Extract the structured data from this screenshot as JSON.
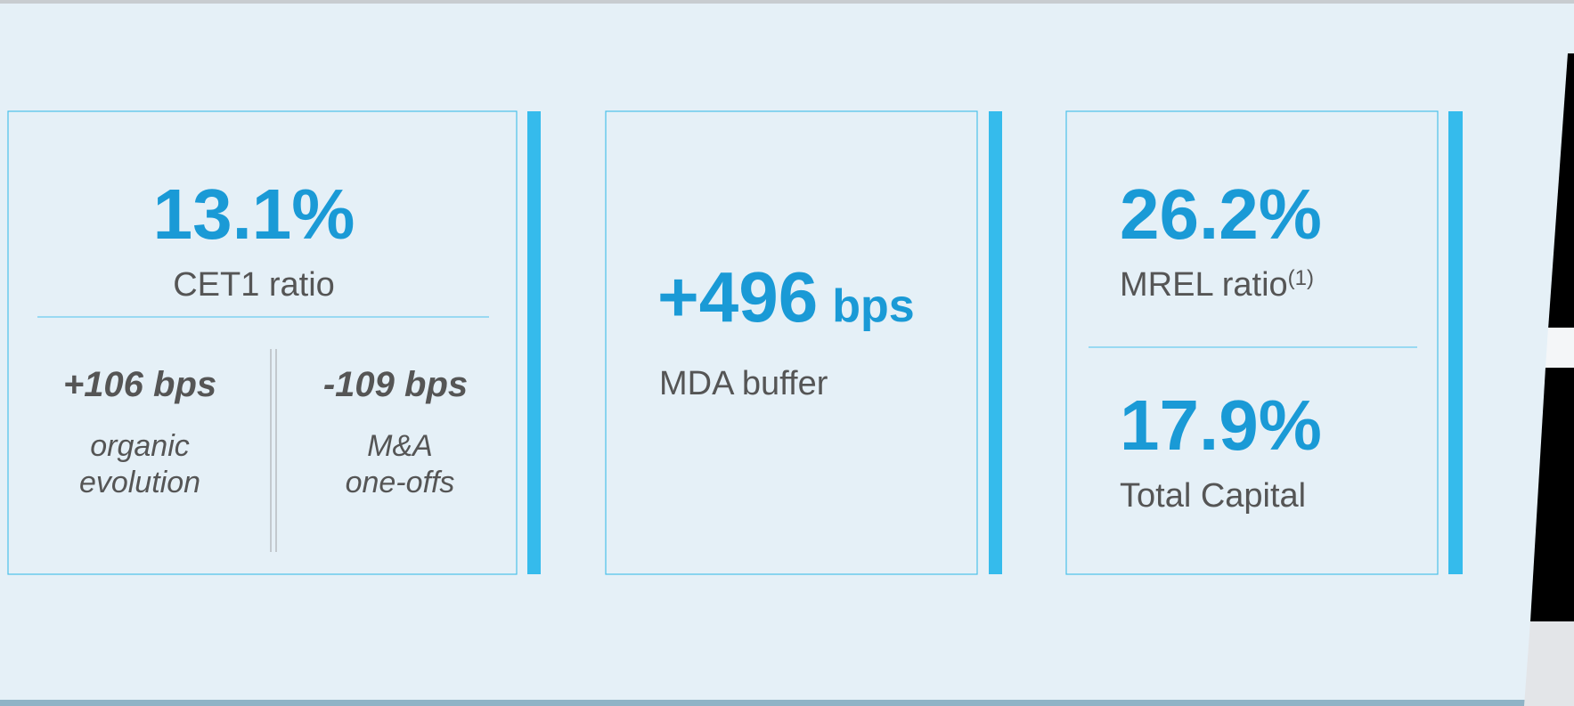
{
  "cards": [
    {
      "value": "13.1%",
      "label": "CET1 ratio",
      "details": [
        {
          "value": "+106 bps",
          "label": [
            "organic",
            "evolution"
          ]
        },
        {
          "value": "-109 bps",
          "label": [
            "M&A",
            "one-offs"
          ]
        }
      ]
    },
    {
      "value": "+496",
      "unit": "bps",
      "label": "MDA buffer"
    },
    {
      "metrics": [
        {
          "value": "26.2%",
          "label": "MREL ratio",
          "note": "(1)"
        },
        {
          "value": "17.9%",
          "label": "Total Capital"
        }
      ]
    }
  ]
}
